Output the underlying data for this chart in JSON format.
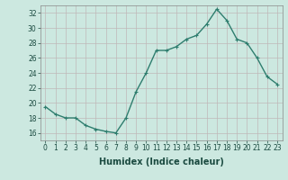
{
  "x": [
    0,
    1,
    2,
    3,
    4,
    5,
    6,
    7,
    8,
    9,
    10,
    11,
    12,
    13,
    14,
    15,
    16,
    17,
    18,
    19,
    20,
    21,
    22,
    23
  ],
  "y": [
    19.5,
    18.5,
    18.0,
    18.0,
    17.0,
    16.5,
    16.2,
    16.0,
    18.0,
    21.5,
    24.0,
    27.0,
    27.0,
    27.5,
    28.5,
    29.0,
    30.5,
    32.5,
    31.0,
    28.5,
    28.0,
    26.0,
    23.5,
    22.5
  ],
  "line_color": "#2e7d6e",
  "marker": "P",
  "marker_size": 2.5,
  "bg_color": "#cce8e0",
  "grid_color": "#c0b8b8",
  "xlabel": "Humidex (Indice chaleur)",
  "ylim": [
    15,
    33
  ],
  "yticks": [
    16,
    18,
    20,
    22,
    24,
    26,
    28,
    30,
    32
  ],
  "xticks": [
    0,
    1,
    2,
    3,
    4,
    5,
    6,
    7,
    8,
    9,
    10,
    11,
    12,
    13,
    14,
    15,
    16,
    17,
    18,
    19,
    20,
    21,
    22,
    23
  ],
  "xtick_labels": [
    "0",
    "1",
    "2",
    "3",
    "4",
    "5",
    "6",
    "7",
    "8",
    "9",
    "10",
    "11",
    "12",
    "13",
    "14",
    "15",
    "16",
    "17",
    "18",
    "19",
    "20",
    "21",
    "22",
    "23"
  ],
  "tick_fontsize": 5.5,
  "xlabel_fontsize": 7,
  "line_width": 1.0,
  "spine_color": "#888888"
}
